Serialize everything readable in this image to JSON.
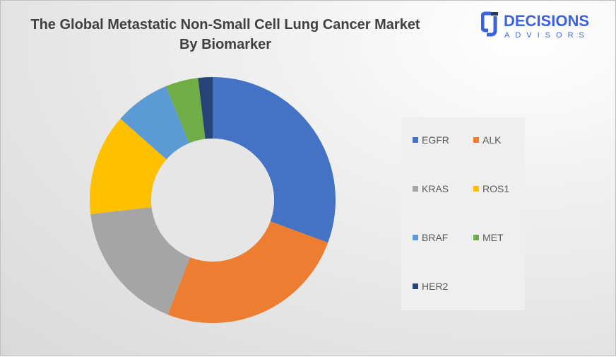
{
  "chart_data": {
    "type": "pie",
    "variant": "donut",
    "title": "The Global Metastatic Non-Small Cell Lung Cancer Market By Biomarker",
    "title_lines": [
      "The Global Metastatic Non-Small Cell Lung Cancer Market",
      "By Biomarker"
    ],
    "categories": [
      "EGFR",
      "ALK",
      "KRAS",
      "ROS1",
      "BRAF",
      "MET",
      "HER2"
    ],
    "values": [
      30.6,
      25.3,
      17.2,
      13.3,
      7.3,
      4.3,
      1.9
    ],
    "colors": [
      "#4472c4",
      "#ed7d31",
      "#a5a5a5",
      "#ffc000",
      "#5b9bd5",
      "#70ad47",
      "#264478"
    ],
    "legend_position": "right"
  },
  "logo": {
    "name": "DECISIONS",
    "sub": "ADVISORS",
    "color": "#3b63e0"
  }
}
